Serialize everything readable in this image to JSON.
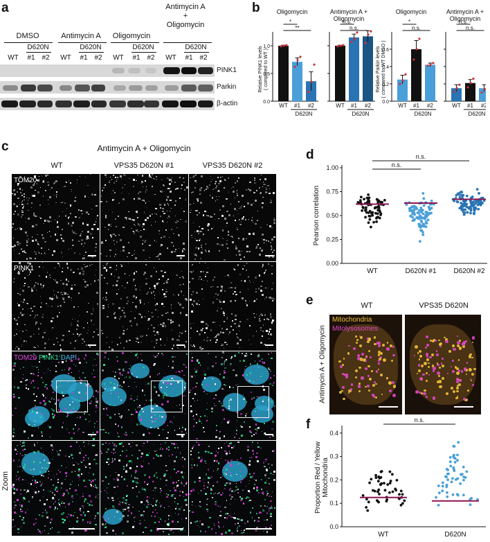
{
  "panels": {
    "a": "a",
    "b": "b",
    "c": "c",
    "d": "d",
    "e": "e",
    "f": "f"
  },
  "blot": {
    "conditions": [
      "DMSO",
      "Antimycin A",
      "Oligomycin",
      "Antimycin A\n+\nOligomycin"
    ],
    "mutant_label": "D620N",
    "lane_labels": [
      "WT",
      "#1",
      "#2"
    ],
    "rows": [
      "PINK1",
      "Parkin",
      "β-actin"
    ]
  },
  "panel_b": {
    "titles": [
      "Oligomycin",
      "Antimycin A +\nOligomycin",
      "Oligomycin",
      "Antimycin A +\nOligomycin"
    ],
    "ylabel_pink1": "Relative PINK1 levels\n( compared to WT )",
    "ylabel_parkin": "Relative Parkin levels\n( compared to WT DMSO )",
    "xticks": [
      "WT",
      "#1",
      "#2"
    ],
    "group_label": "D620N",
    "sig": {
      "s1": "*",
      "s2": "**",
      "ns": "n.s."
    }
  },
  "panel_c": {
    "title": "Antimycin A + Oligomycin",
    "columns": [
      "WT",
      "VPS35 D620N #1",
      "VPS35 D620N #2"
    ],
    "rows": {
      "tom20": "TOM20",
      "pink1": "PINK1",
      "merge_a": "TOM20",
      "merge_b": "PINK1",
      "merge_c": "DAPI",
      "zoom": "Zoom"
    }
  },
  "panel_e": {
    "columns": [
      "WT",
      "VPS35 D620N"
    ],
    "legend_mito": "Mitochondria",
    "legend_lyso": "Mitolysosomes",
    "side_label": "Antimycin A + Oligomycin"
  },
  "colors": {
    "black_bar": "#111111",
    "light_blue": "#4a9fd8",
    "mid_blue": "#2a74b4",
    "dark_blue": "#1a5584",
    "median_line": "#8b1450",
    "blot_bg": "#d8d8d8",
    "tom20": "#d43fd4",
    "pink1": "#35d890",
    "dapi": "#2aa0c8",
    "mito": "#f0c23a",
    "lyso": "#e048c8"
  },
  "chart_data": [
    {
      "id": "b_pink1_oligomycin",
      "type": "bar",
      "title": "Oligomycin",
      "ylabel": "Relative PINK1 levels ( compared to WT )",
      "categories": [
        "WT",
        "#1",
        "#2"
      ],
      "values": [
        1.0,
        0.71,
        0.36
      ],
      "errors": [
        0.01,
        0.07,
        0.17
      ],
      "points": [
        [
          0.99,
          1.0,
          1.01
        ],
        [
          0.62,
          0.74,
          0.8
        ],
        [
          0.17,
          0.35,
          0.66
        ]
      ],
      "ylim": [
        0,
        1.25
      ],
      "yticks": [
        0,
        0.5,
        1.0
      ],
      "significance": [
        {
          "pair": [
            "WT",
            "#1"
          ],
          "label": "*"
        },
        {
          "pair": [
            "WT",
            "#2"
          ],
          "label": "**"
        }
      ]
    },
    {
      "id": "b_pink1_aa_oligomycin",
      "type": "bar",
      "title": "Antimycin A + Oligomycin",
      "categories": [
        "WT",
        "#1",
        "#2"
      ],
      "values": [
        1.0,
        1.15,
        1.17
      ],
      "errors": [
        0.01,
        0.06,
        0.1
      ],
      "points": [
        [
          0.99,
          1.0,
          1.01
        ],
        [
          1.07,
          1.12,
          1.24
        ],
        [
          1.05,
          1.2,
          1.26
        ]
      ],
      "ylim": [
        0,
        1.25
      ],
      "yticks": [
        0,
        0.5,
        1.0
      ],
      "significance": [
        {
          "pair": [
            "WT",
            "#1"
          ],
          "label": "n.s."
        },
        {
          "pair": [
            "WT",
            "#2"
          ],
          "label": "n.s."
        }
      ]
    },
    {
      "id": "b_parkin_oligomycin",
      "type": "bar",
      "title": "Oligomycin",
      "ylabel": "Relative Parkin levels ( compared to WT DMSO )",
      "categories": [
        "WT",
        "#1",
        "#2"
      ],
      "values": [
        0.25,
        0.6,
        0.42
      ],
      "errors": [
        0.05,
        0.1,
        0.02
      ],
      "points": [
        [
          0.2,
          0.24,
          0.31
        ],
        [
          0.48,
          0.6,
          0.72
        ],
        [
          0.41,
          0.42,
          0.44
        ]
      ],
      "ylim": [
        0,
        0.8
      ],
      "yticks": [
        0,
        0.2,
        0.4,
        0.6
      ],
      "significance": [
        {
          "pair": [
            "WT",
            "#1"
          ],
          "label": "*"
        },
        {
          "pair": [
            "WT",
            "#2"
          ],
          "label": "n.s."
        }
      ]
    },
    {
      "id": "b_parkin_aa_oligomycin",
      "type": "bar",
      "title": "Antimycin A + Oligomycin",
      "categories": [
        "WT",
        "#1",
        "#2"
      ],
      "values": [
        0.15,
        0.21,
        0.15
      ],
      "errors": [
        0.04,
        0.04,
        0.04
      ],
      "points": [
        [
          0.11,
          0.15,
          0.19
        ],
        [
          0.16,
          0.21,
          0.26
        ],
        [
          0.1,
          0.14,
          0.21
        ]
      ],
      "ylim": [
        0,
        0.8
      ],
      "yticks": [
        0,
        0.2,
        0.4,
        0.6
      ],
      "significance": [
        {
          "pair": [
            "WT",
            "#1"
          ],
          "label": "n.s."
        },
        {
          "pair": [
            "WT",
            "#2"
          ],
          "label": "n.s."
        }
      ]
    },
    {
      "id": "d_pearson",
      "type": "scatter",
      "ylabel": "Pearson correlation",
      "categories": [
        "WT",
        "D620N #1",
        "D620N #2"
      ],
      "medians": [
        0.62,
        0.63,
        0.67
      ],
      "point_counts": [
        70,
        100,
        100
      ],
      "ranges": [
        [
          0.36,
          0.79
        ],
        [
          0.22,
          0.8
        ],
        [
          0.44,
          0.82
        ]
      ],
      "ylim": [
        0,
        1.0
      ],
      "yticks": [
        0.0,
        0.25,
        0.5,
        0.75,
        1.0
      ],
      "significance": [
        {
          "pair": [
            "WT",
            "D620N #1"
          ],
          "label": "n.s."
        },
        {
          "pair": [
            "WT",
            "D620N #2"
          ],
          "label": "n.s."
        }
      ]
    },
    {
      "id": "f_proportion",
      "type": "scatter",
      "ylabel": "Proportion Red / Yellow\nMitochondria",
      "categories": [
        "WT",
        "D620N"
      ],
      "medians": [
        0.125,
        0.11
      ],
      "point_counts": [
        50,
        56
      ],
      "ranges": [
        [
          0.02,
          0.3
        ],
        [
          0.01,
          0.4
        ]
      ],
      "ylim": [
        0,
        0.42
      ],
      "yticks": [
        0.0,
        0.1,
        0.2,
        0.3,
        0.4
      ],
      "significance": [
        {
          "pair": [
            "WT",
            "D620N"
          ],
          "label": "n.s."
        }
      ]
    }
  ]
}
